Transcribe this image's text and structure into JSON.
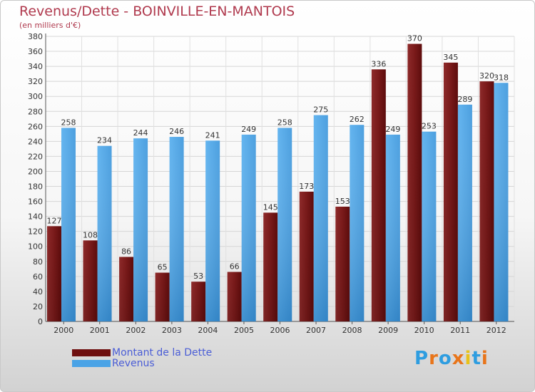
{
  "header": {
    "title": "Revenus/Dette - BOINVILLE-EN-MANTOIS",
    "subtitle": "(en milliers d'€)"
  },
  "colors": {
    "debt": "#7a1a1a",
    "debt_light": "#a33a3a",
    "revenue": "#4aa3e6",
    "revenue_light": "#63b6f0",
    "title": "#b03a4e",
    "legend_text": "#4a5dd6"
  },
  "legend": {
    "items": [
      {
        "label": "Montant de la Dette",
        "color": "#6e0f0f"
      },
      {
        "label": "Revenus",
        "color": "#4aa3e6"
      }
    ]
  },
  "logo": {
    "text": "Proxiti",
    "letter_colors": [
      "#2e9de0",
      "#e8751a",
      "#2e9de0",
      "#e8751a",
      "#e8c21a",
      "#2e9de0",
      "#e8751a"
    ]
  },
  "chart_data": {
    "type": "bar",
    "categories": [
      "2000",
      "2001",
      "2002",
      "2003",
      "2004",
      "2005",
      "2006",
      "2007",
      "2008",
      "2009",
      "2010",
      "2011",
      "2012"
    ],
    "series": [
      {
        "name": "Montant de la Dette",
        "values": [
          127,
          108,
          86,
          65,
          53,
          66,
          145,
          173,
          153,
          336,
          370,
          345,
          320
        ]
      },
      {
        "name": "Revenus",
        "values": [
          258,
          234,
          244,
          246,
          241,
          249,
          258,
          275,
          262,
          249,
          253,
          289,
          318
        ]
      }
    ],
    "title": "Revenus/Dette - BOINVILLE-EN-MANTOIS",
    "ylabel": "(en milliers d'€)",
    "xlabel": "",
    "ylim": [
      0,
      380
    ],
    "ytick_step": 20,
    "grid": true,
    "legend_position": "bottom-left"
  }
}
